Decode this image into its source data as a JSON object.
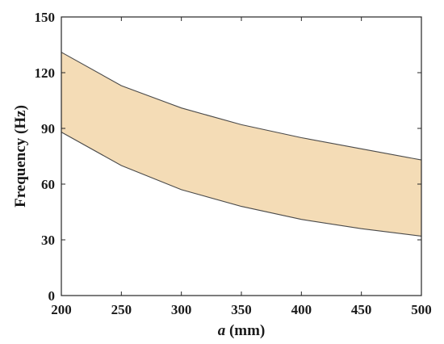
{
  "chart_data": {
    "type": "area",
    "title": "",
    "xlabel_var": "a",
    "xlabel_unit": " (mm)",
    "ylabel": "Frequency (Hz)",
    "xlim": [
      200,
      500
    ],
    "ylim": [
      0,
      150
    ],
    "x_ticks": [
      200,
      250,
      300,
      350,
      400,
      450,
      500
    ],
    "y_ticks": [
      0,
      30,
      60,
      90,
      120,
      150
    ],
    "x": [
      200,
      250,
      300,
      350,
      400,
      450,
      500
    ],
    "upper": [
      131,
      113,
      101,
      92,
      85,
      79,
      73
    ],
    "lower": [
      88,
      70,
      57,
      48,
      41,
      36,
      32
    ],
    "fill_color": "#f4dcb6",
    "edge_color": "#4a4a4a",
    "grid": false,
    "legend": "none"
  }
}
